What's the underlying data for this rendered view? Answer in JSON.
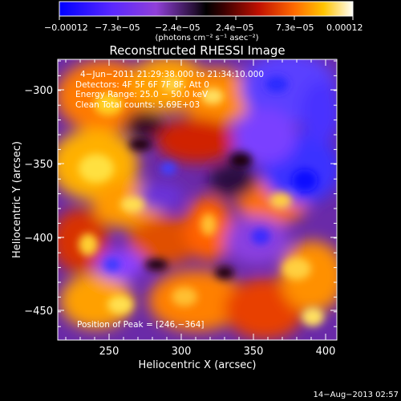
{
  "colorbar": {
    "ticks": [
      "−0.00012",
      "−7.3e−05",
      "−2.4e−05",
      "2.4e−05",
      "7.3e−05",
      "0.00012"
    ],
    "units": "(photons cm⁻² s⁻¹ asec⁻²)"
  },
  "plot": {
    "title": "Reconstructed RHESSI Image",
    "info_lines": [
      "4−Jun−2011 21:29:38.000 to 21:34:10.000",
      "Detectors: 4F 5F 6F 7F 8F, Att 0",
      "Energy Range: 25.0 − 50.0 keV",
      "Clean     Total counts: 5.69E+03"
    ],
    "peak_text": "Position of Peak = [246,−364]",
    "xlabel": "Heliocentric X (arcsec)",
    "ylabel": "Heliocentric Y (arcsec)",
    "xticks": [
      "250",
      "300",
      "350",
      "400"
    ],
    "yticks": [
      "−300",
      "−350",
      "−400",
      "−450"
    ]
  },
  "footer": {
    "date": "14−Aug−2013 02:57"
  }
}
